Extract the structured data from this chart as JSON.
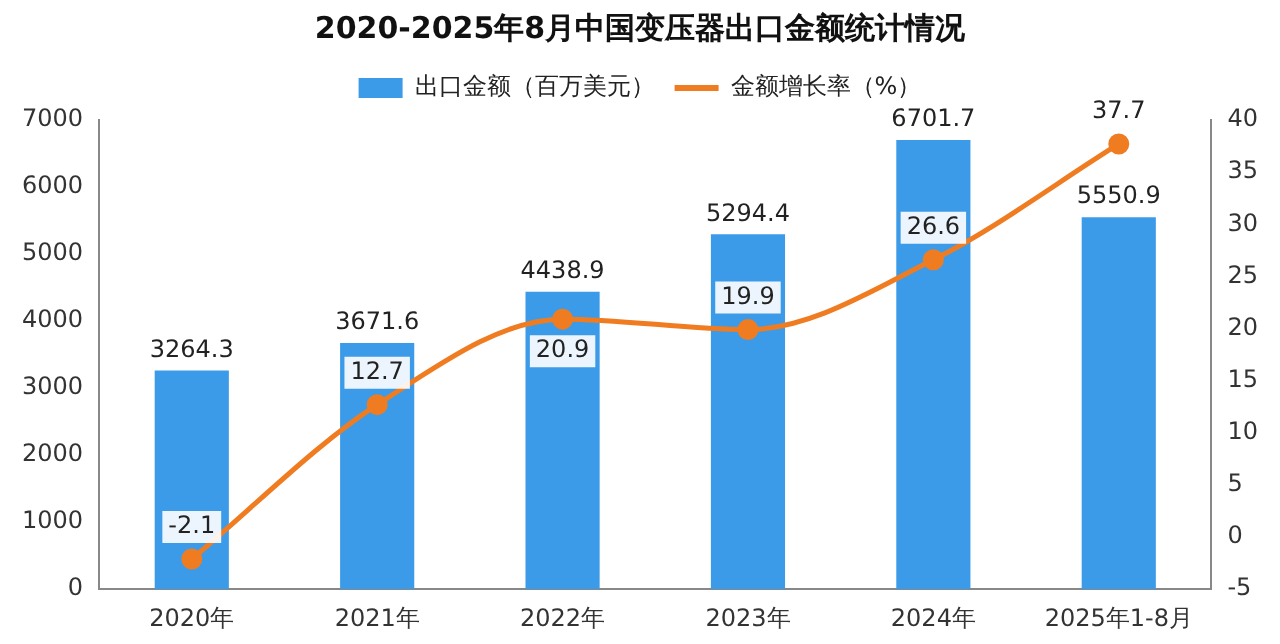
{
  "chart_data": {
    "type": "bar",
    "title": "2020-2025年8月中国变压器出口金额统计情况",
    "categories": [
      "2020年",
      "2021年",
      "2022年",
      "2023年",
      "2024年",
      "2025年1-8月"
    ],
    "series": [
      {
        "name": "出口金额（百万美元）",
        "color": "#3c9be8",
        "values": [
          3264.3,
          3671.6,
          4438.9,
          5294.4,
          6701.7,
          5550.9
        ]
      },
      {
        "name": "金额增长率（%）",
        "type": "line",
        "axis": "y2",
        "color": "#f07c22",
        "values": [
          -2.1,
          12.7,
          20.9,
          19.9,
          26.6,
          37.7
        ]
      }
    ],
    "ylim": [
      0,
      7000
    ],
    "yticks": [
      0,
      1000,
      2000,
      3000,
      4000,
      5000,
      6000,
      7000
    ],
    "y2lim": [
      -5,
      40
    ],
    "y2ticks": [
      -5,
      0,
      5,
      10,
      15,
      20,
      25,
      30,
      35,
      40
    ],
    "legend": "top",
    "grid": false,
    "data_labels": true,
    "marker": "circle",
    "line_style": "solid"
  }
}
